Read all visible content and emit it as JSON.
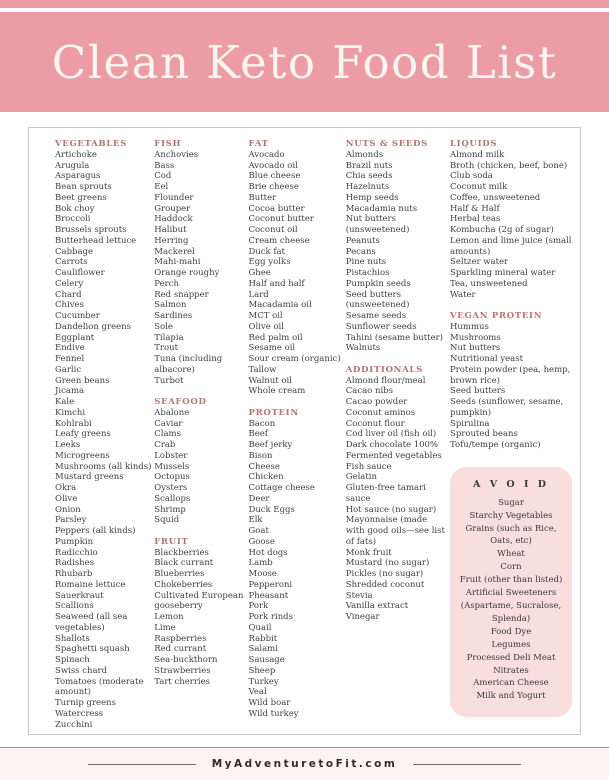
{
  "title": "Clean Keto Food List",
  "colors": {
    "banner_pink": "#eb9ca4",
    "title_cream": "#fbf5f2",
    "header_rose": "#b5756c",
    "avoid_pink": "#f8dfde"
  },
  "columns": [
    {
      "sections": [
        {
          "header": "VEGETABLES",
          "items": [
            "Artichoke",
            "Arugula",
            "Asparagus",
            "Bean sprouts",
            "Beet greens",
            "Bok choy",
            "Broccoli",
            "Brussels sprouts",
            "Butterhead lettuce",
            "Cabbage",
            "Carrots",
            "Cauliflower",
            "Celery",
            "Chard",
            "Chives",
            "Cucumber",
            "Dandelion greens",
            "Eggplant",
            "Endive",
            "Fennel",
            "Garlic",
            "Green beans",
            "Jicama",
            "Kale",
            "Kimchi",
            "Kohlrabi",
            "Leafy greens",
            "Leeks",
            "Microgreens",
            "Mushrooms (all kinds)",
            "Mustard greens",
            "Okra",
            "Olive",
            "Onion",
            "Parsley",
            "Peppers (all kinds)",
            "Pumpkin",
            "Radicchio",
            "Radishes",
            "Rhubarb",
            "Romaine lettuce",
            "Sauerkraut",
            "Scallions",
            "Seaweed (all sea vegetables)",
            "Shallots",
            "Spaghetti squash",
            "Spinach",
            "Swiss chard",
            "Tomatoes (moderate amount)",
            "Turnip greens",
            "Watercress",
            "Zucchini"
          ]
        }
      ]
    },
    {
      "sections": [
        {
          "header": "FISH",
          "items": [
            "Anchovies",
            "Bass",
            "Cod",
            "Eel",
            "Flounder",
            "Grouper",
            "Haddock",
            "Halibut",
            "Herring",
            "Mackerel",
            "Mahi-mahi",
            "Orange roughy",
            "Perch",
            "Red snapper",
            "Salmon",
            "Sardines",
            "Sole",
            "Tilapia",
            "Trout",
            "Tuna (including albacore)",
            "Turbot"
          ]
        },
        {
          "header": "SEAFOOD",
          "items": [
            "Abalone",
            "Caviar",
            "Clams",
            "Crab",
            "Lobster",
            "Mussels",
            "Octopus",
            "Oysters",
            "Scallops",
            "Shrimp",
            "Squid"
          ]
        },
        {
          "header": "FRUIT",
          "items": [
            "Blackberries",
            "Black currant",
            "Blueberries",
            "Chokeberries",
            "Cultivated European gooseberry",
            "Lemon",
            "Lime",
            "Raspberries",
            "Red currant",
            "Sea-buckthorn",
            "Strawberries",
            "Tart cherries"
          ]
        }
      ]
    },
    {
      "sections": [
        {
          "header": "FAT",
          "items": [
            "Avocado",
            "Avocado oil",
            "Blue cheese",
            "Brie cheese",
            "Butter",
            "Cocoa butter",
            "Coconut butter",
            "Coconut oil",
            "Cream cheese",
            "Duck fat",
            "Egg yolks",
            "Ghee",
            "Half and half",
            "Lard",
            "Macadamia oil",
            "MCT oil",
            "Olive oil",
            "Red palm oil",
            "Sesame oil",
            "Sour cream (organic)",
            "Tallow",
            "Walnut oil",
            "Whole cream"
          ]
        },
        {
          "header": "PROTEIN",
          "items": [
            "Bacon",
            "Beef",
            "Beef jerky",
            "Bison",
            "Cheese",
            "Chicken",
            "Cottage cheese",
            "Deer",
            "Duck Eggs",
            "Elk",
            "Goat",
            "Goose",
            "Hot dogs",
            "Lamb",
            "Moose",
            "Pepperoni",
            "Pheasant",
            "Pork",
            "Pork rinds",
            "Quail",
            "Rabbit",
            "Salami",
            "Sausage",
            "Sheep",
            "Turkey",
            "Veal",
            "Wild boar",
            "Wild turkey"
          ]
        }
      ]
    },
    {
      "sections": [
        {
          "header": "NUTS & SEEDS",
          "items": [
            "Almonds",
            "Brazil nuts",
            "Chia seeds",
            "Hazelnuts",
            "Hemp seeds",
            "Macadamia nuts",
            "Nut butters (unsweetened)",
            "Peanuts",
            "Pecans",
            "Pine nuts",
            "Pistachios",
            "Pumpkin seeds",
            "Seed butters (unsweetened)",
            "Sesame seeds",
            "Sunflower seeds",
            "Tahini (sesame butter)",
            "Walnuts"
          ]
        },
        {
          "header": "ADDITIONALS",
          "items": [
            "Almond flour/meal",
            "Cacao nibs",
            "Cacao powder",
            "Coconut aminos",
            "Coconut flour",
            "Cod liver oil (fish oil)",
            "Dark chocolate 100%",
            "Fermented vegetables",
            "Fish sauce",
            "Gelatin",
            "Gluten-free tamari sauce",
            "Hot sauce (no sugar)",
            "Mayonnaise (made with good oils—see list of fats)",
            "Monk fruit",
            "Mustard (no sugar)",
            "Pickles (no sugar)",
            "Shredded coconut",
            "Stevia",
            "Vanilla extract",
            "Vinegar"
          ]
        }
      ]
    },
    {
      "sections": [
        {
          "header": "LIQUIDS",
          "items": [
            "Almond milk",
            "Broth (chicken, beef, bone)",
            "Club soda",
            "Coconut milk",
            "Coffee, unsweetened",
            "Half & Half",
            "Herbal teas",
            "Kombucha (2g of sugar)",
            "Lemon and lime juice (small amounts)",
            "Seltzer water",
            "Sparkling mineral water",
            "Tea, unsweetened",
            "Water"
          ]
        },
        {
          "header": "VEGAN PROTEIN",
          "items": [
            "Hummus",
            "Mushrooms",
            "Nut butters",
            "Nutritional yeast",
            "Protein powder (pea, hemp, brown rice)",
            "Seed butters",
            "Seeds (sunflower, sesame, pumpkin)",
            "Spirulina",
            "Sprouted beans",
            "Tofu/tempe (organic)"
          ]
        }
      ]
    }
  ],
  "avoid": {
    "header": "A V O I D",
    "items": [
      "Sugar",
      "Starchy Vegetables",
      "Grains (such as Rice, Oats, etc)",
      "Wheat",
      "Corn",
      "Fruit (other than listed)",
      "Artificial Sweeteners (Aspartame, Sucralose, Splenda)",
      "Food Dye",
      "Legumes",
      "Processed Deli Meat",
      "Nitrates",
      "American Cheese",
      "Milk and Yogurt"
    ]
  },
  "footer": {
    "site": "MyAdventuretoFit.com"
  }
}
